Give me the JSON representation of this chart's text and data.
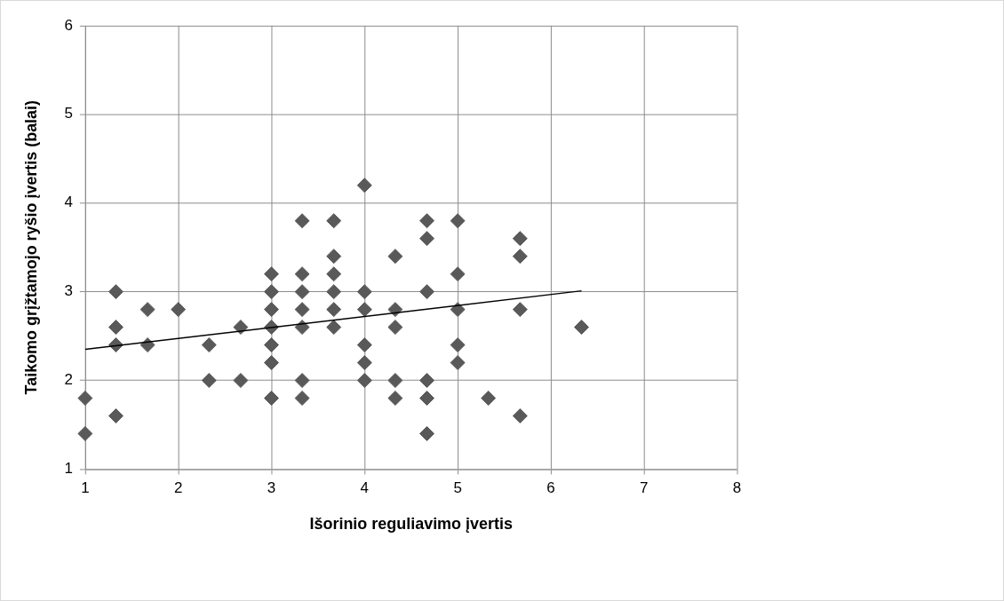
{
  "chart_data": {
    "type": "scatter",
    "xlabel": "Išorinio reguliavimo įvertis",
    "ylabel": "Taikomo grįžtamojo ryšio įvertis (balai)",
    "xlim": [
      1,
      8
    ],
    "xticks": [
      1,
      2,
      3,
      4,
      5,
      6,
      7,
      8
    ],
    "ylim": [
      1,
      6
    ],
    "yticks": [
      1,
      2,
      3,
      4,
      5,
      6
    ],
    "grid": true,
    "legend": false,
    "marker": "diamond",
    "series": [
      {
        "color": "#595959",
        "x": [
          1,
          1,
          1.33,
          1.33,
          1.33,
          1.33,
          1.67,
          1.67,
          2,
          2.33,
          2.33,
          2.67,
          2.67,
          3,
          3,
          3,
          3,
          3,
          3,
          3,
          3.33,
          3.33,
          3.33,
          3.33,
          3.33,
          3.33,
          3.33,
          3.67,
          3.67,
          3.67,
          3.67,
          3.67,
          3.67,
          4,
          4,
          4,
          4,
          4,
          4,
          4.33,
          4.33,
          4.33,
          4.33,
          4.33,
          4.67,
          4.67,
          4.67,
          4.67,
          4.67,
          4.67,
          5,
          5,
          5,
          5,
          5,
          5.33,
          5.67,
          5.67,
          5.67,
          5.67,
          6.33
        ],
        "values": [
          1.8,
          1.4,
          3.0,
          2.6,
          2.4,
          1.6,
          2.8,
          2.4,
          2.8,
          2.4,
          2.0,
          2.6,
          2.0,
          3.2,
          3.0,
          2.8,
          2.6,
          2.4,
          2.2,
          1.8,
          3.8,
          3.2,
          3.0,
          2.8,
          2.6,
          2.0,
          1.8,
          3.8,
          3.4,
          3.2,
          3.0,
          2.8,
          2.6,
          4.2,
          3.0,
          2.8,
          2.4,
          2.2,
          2.0,
          3.4,
          2.8,
          2.6,
          2.0,
          1.8,
          3.8,
          3.6,
          3.0,
          2.0,
          1.8,
          1.4,
          3.8,
          3.2,
          2.8,
          2.4,
          2.2,
          1.8,
          3.6,
          3.4,
          2.8,
          1.6,
          2.6
        ]
      },
      {
        "type": "line",
        "color": "#000000",
        "marker": "none",
        "x": [
          1,
          6.33
        ],
        "values": [
          2.35,
          3.01
        ]
      }
    ]
  }
}
